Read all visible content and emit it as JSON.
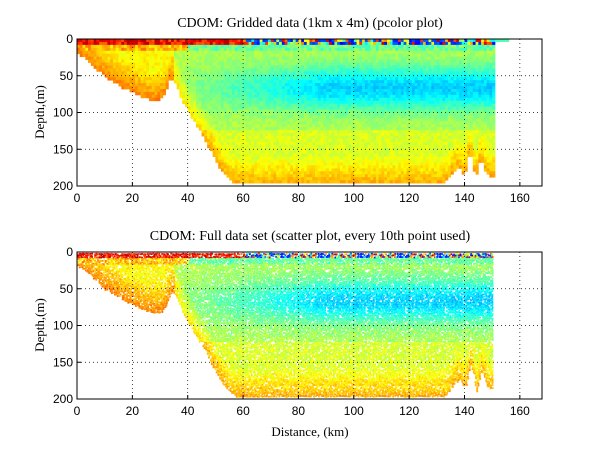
{
  "chart_data": [
    {
      "type": "heatmap",
      "variant": "pcolor",
      "title": "CDOM: Gridded data (1km x 4m) (pcolor plot)",
      "xlabel": "",
      "ylabel": "Depth,(m)",
      "xlim": [
        0,
        168
      ],
      "ylim": [
        200,
        0
      ],
      "xticks": [
        0,
        20,
        40,
        60,
        80,
        100,
        120,
        140,
        160
      ],
      "yticks": [
        0,
        50,
        100,
        150,
        200
      ],
      "grid": true,
      "seabed_profile": {
        "distance_km": [
          0,
          2,
          5,
          8,
          10,
          13,
          16,
          20,
          24,
          28,
          30,
          32,
          33,
          34,
          36,
          38,
          40,
          42,
          44,
          46,
          48,
          50,
          52,
          54,
          56,
          60,
          80,
          100,
          120,
          132,
          134,
          136,
          138,
          140,
          142,
          144,
          146,
          148,
          150
        ],
        "bottom_depth_m": [
          18,
          22,
          33,
          42,
          50,
          56,
          64,
          70,
          78,
          82,
          82,
          72,
          60,
          52,
          62,
          82,
          95,
          108,
          120,
          133,
          148,
          163,
          176,
          186,
          194,
          196,
          196,
          196,
          196,
          196,
          190,
          178,
          172,
          185,
          150,
          190,
          160,
          182,
          186
        ]
      },
      "surface_profile": {
        "distance_km": [
          0,
          5,
          10,
          20,
          30,
          40,
          60,
          80,
          100,
          120,
          130,
          135,
          140,
          145,
          150,
          152,
          155,
          156
        ],
        "top_depth_m": [
          0,
          0,
          0,
          0,
          0,
          0,
          0,
          0,
          0,
          0,
          0,
          0,
          0,
          0,
          0,
          4,
          4,
          6
        ]
      },
      "colormap": "jet"
    },
    {
      "type": "scatter",
      "variant": "colored scatter",
      "title": "CDOM: Full data set (scatter plot, every 10th point used)",
      "xlabel": "Distance, (km)",
      "ylabel": "Depth,(m)",
      "xlim": [
        0,
        168
      ],
      "ylim": [
        200,
        0
      ],
      "xticks": [
        0,
        20,
        40,
        60,
        80,
        100,
        120,
        140,
        160
      ],
      "yticks": [
        0,
        50,
        100,
        150,
        200
      ],
      "grid": true,
      "seabed_profile": {
        "distance_km": [
          0,
          2,
          5,
          8,
          10,
          13,
          16,
          20,
          24,
          28,
          30,
          32,
          33,
          34,
          36,
          38,
          40,
          42,
          44,
          46,
          48,
          50,
          52,
          54,
          56,
          60,
          80,
          100,
          120,
          132,
          134,
          136,
          138,
          140,
          142,
          144,
          146,
          148,
          150
        ],
        "bottom_depth_m": [
          18,
          22,
          33,
          42,
          50,
          56,
          64,
          70,
          78,
          82,
          82,
          72,
          60,
          52,
          62,
          82,
          95,
          108,
          120,
          133,
          148,
          163,
          176,
          186,
          194,
          196,
          196,
          196,
          196,
          196,
          190,
          178,
          172,
          185,
          150,
          190,
          160,
          182,
          186
        ]
      },
      "colormap": "jet"
    }
  ]
}
